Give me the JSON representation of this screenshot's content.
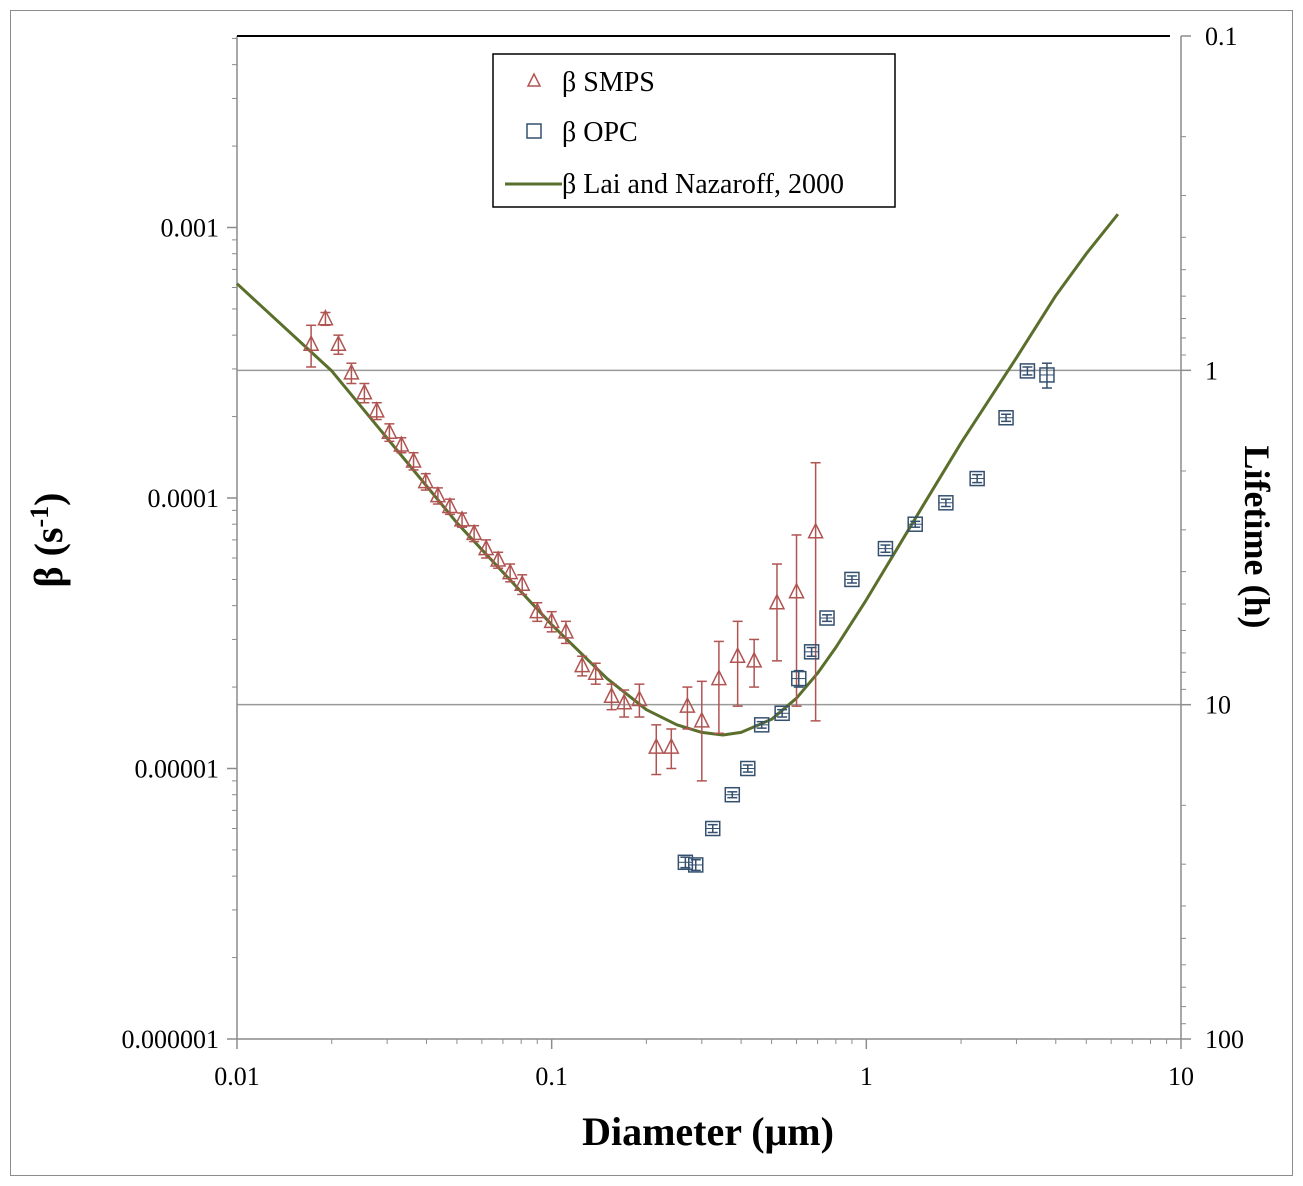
{
  "chart_data": {
    "type": "scatter",
    "title": "",
    "xlabel": "Diameter (μm)",
    "ylabel": "β (s-1)",
    "ylabel_base": "β (s",
    "ylabel_sup": "-1",
    "ylabel_close": ")",
    "y2label": "Lifetime (h)",
    "xscale": "log",
    "yscale": "log",
    "y2scale": "log",
    "xlim": [
      0.01,
      10
    ],
    "ylim": [
      1e-06,
      0.007
    ],
    "y2lim": [
      0.1,
      100
    ],
    "x_ticks": [
      "0.01",
      "0.1",
      "1",
      "10"
    ],
    "y_ticks": [
      "0.001",
      "0.0001",
      "0.00001",
      "0.000001"
    ],
    "y2_ticks": [
      "0.1",
      "1",
      "10",
      "100"
    ],
    "grid": "horizontal lines at lifetime 1 h and 10 h",
    "legend_position": "top-center",
    "colors": {
      "smps": "#b05452",
      "opc": "#34506e",
      "model": "#5a6f2c",
      "grid": "#9a9a9a"
    },
    "series": [
      {
        "name": "β SMPS",
        "marker": "triangle-open",
        "points": [
          {
            "x": 0.0172,
            "y": 0.00037,
            "err": 6.5e-05
          },
          {
            "x": 0.0191,
            "y": 0.00046,
            "err": 2.5e-05
          },
          {
            "x": 0.021,
            "y": 0.00037,
            "err": 3e-05
          },
          {
            "x": 0.0231,
            "y": 0.00029,
            "err": 2.5e-05
          },
          {
            "x": 0.0254,
            "y": 0.000245,
            "err": 2e-05
          },
          {
            "x": 0.0278,
            "y": 0.00021,
            "err": 1.5e-05
          },
          {
            "x": 0.0305,
            "y": 0.000175,
            "err": 1.3e-05
          },
          {
            "x": 0.0333,
            "y": 0.000157,
            "err": 1e-05
          },
          {
            "x": 0.0364,
            "y": 0.000137,
            "err": 1e-05
          },
          {
            "x": 0.0398,
            "y": 0.000115,
            "err": 8e-06
          },
          {
            "x": 0.0435,
            "y": 0.000102,
            "err": 7e-06
          },
          {
            "x": 0.0475,
            "y": 9.3e-05,
            "err": 6e-06
          },
          {
            "x": 0.0519,
            "y": 8.3e-05,
            "err": 5e-06
          },
          {
            "x": 0.0567,
            "y": 7.4e-05,
            "err": 5e-06
          },
          {
            "x": 0.0619,
            "y": 6.5e-05,
            "err": 5e-06
          },
          {
            "x": 0.0676,
            "y": 5.9e-05,
            "err": 4e-06
          },
          {
            "x": 0.0738,
            "y": 5.3e-05,
            "err": 4e-06
          },
          {
            "x": 0.0806,
            "y": 4.8e-05,
            "err": 4e-06
          },
          {
            "x": 0.09,
            "y": 3.8e-05,
            "err": 3e-06
          },
          {
            "x": 0.1,
            "y": 3.5e-05,
            "err": 3e-06
          },
          {
            "x": 0.111,
            "y": 3.2e-05,
            "err": 3e-06
          },
          {
            "x": 0.125,
            "y": 2.4e-05,
            "err": 2e-06
          },
          {
            "x": 0.138,
            "y": 2.25e-05,
            "err": 2e-06
          },
          {
            "x": 0.155,
            "y": 1.85e-05,
            "err": 2e-06
          },
          {
            "x": 0.17,
            "y": 1.75e-05,
            "err": 2e-06
          },
          {
            "x": 0.19,
            "y": 1.8e-05,
            "err": 2.5e-06
          },
          {
            "x": 0.215,
            "y": 1.2e-05,
            "err": 2.5e-06
          },
          {
            "x": 0.24,
            "y": 1.2e-05,
            "err": 2e-06
          },
          {
            "x": 0.27,
            "y": 1.7e-05,
            "err": 3e-06
          },
          {
            "x": 0.3,
            "y": 1.5e-05,
            "err": 6e-06
          },
          {
            "x": 0.34,
            "y": 2.15e-05,
            "err": 8e-06
          },
          {
            "x": 0.39,
            "y": 2.6e-05,
            "err": 9e-06
          },
          {
            "x": 0.44,
            "y": 2.5e-05,
            "err": 5e-06
          },
          {
            "x": 0.52,
            "y": 4.1e-05,
            "err": 1.6e-05
          },
          {
            "x": 0.6,
            "y": 4.5e-05,
            "err": 2.8e-05
          },
          {
            "x": 0.69,
            "y": 7.5e-05,
            "err": 6e-05
          }
        ]
      },
      {
        "name": "β OPC",
        "marker": "square-open",
        "points": [
          {
            "x": 0.266,
            "y": 4.5e-06,
            "err": 2e-07
          },
          {
            "x": 0.287,
            "y": 4.4e-06,
            "err": 2e-07
          },
          {
            "x": 0.325,
            "y": 6e-06,
            "err": 2e-07
          },
          {
            "x": 0.375,
            "y": 8e-06,
            "err": 2e-07
          },
          {
            "x": 0.42,
            "y": 1e-05,
            "err": 3e-07
          },
          {
            "x": 0.465,
            "y": 1.45e-05,
            "err": 4e-07
          },
          {
            "x": 0.54,
            "y": 1.6e-05,
            "err": 5e-07
          },
          {
            "x": 0.61,
            "y": 2.15e-05,
            "err": 1.5e-06
          },
          {
            "x": 0.67,
            "y": 2.7e-05,
            "err": 1e-06
          },
          {
            "x": 0.75,
            "y": 3.6e-05,
            "err": 1e-06
          },
          {
            "x": 0.9,
            "y": 5e-05,
            "err": 1.5e-06
          },
          {
            "x": 1.15,
            "y": 6.5e-05,
            "err": 2e-06
          },
          {
            "x": 1.43,
            "y": 8e-05,
            "err": 2e-06
          },
          {
            "x": 1.79,
            "y": 9.6e-05,
            "err": 3e-06
          },
          {
            "x": 2.25,
            "y": 0.000118,
            "err": 4e-06
          },
          {
            "x": 2.78,
            "y": 0.000198,
            "err": 6e-06
          },
          {
            "x": 3.25,
            "y": 0.000295,
            "err": 1e-05
          },
          {
            "x": 3.75,
            "y": 0.000285,
            "err": 3e-05
          }
        ]
      },
      {
        "name": "β Lai and Nazaroff, 2000",
        "type": "line",
        "x": [
          0.01,
          0.02,
          0.05,
          0.1,
          0.15,
          0.2,
          0.25,
          0.3,
          0.35,
          0.4,
          0.5,
          0.6,
          0.7,
          0.8,
          1.0,
          1.5,
          2.0,
          3.0,
          4.0,
          5.0,
          6.3
        ],
        "values": [
          0.00062,
          0.000295,
          8.1e-05,
          3.4e-05,
          2.15e-05,
          1.65e-05,
          1.45e-05,
          1.36e-05,
          1.33e-05,
          1.36e-05,
          1.52e-05,
          1.82e-05,
          2.25e-05,
          2.8e-05,
          4.2e-05,
          9.2e-05,
          0.00016,
          0.00033,
          0.00056,
          0.0008,
          0.00112
        ]
      }
    ]
  }
}
